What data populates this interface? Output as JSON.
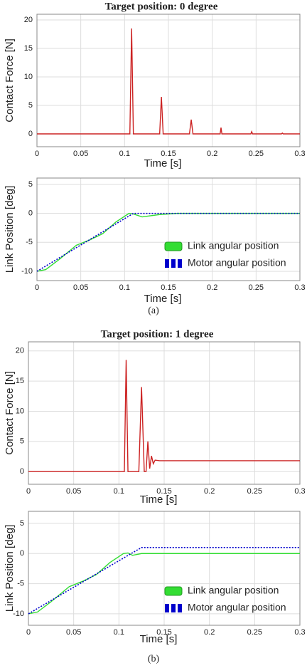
{
  "chart_data": [
    {
      "type": "line",
      "title": "Target position: 0 degree",
      "xlabel": "Time [s]",
      "ylabel": "Contact Force [N]",
      "x": [
        0,
        0.106,
        0.108,
        0.11,
        0.14,
        0.142,
        0.144,
        0.174,
        0.176,
        0.178,
        0.209,
        0.21,
        0.211,
        0.244,
        0.245,
        0.246,
        0.279,
        0.28,
        0.281,
        0.3
      ],
      "series": [
        {
          "name": null,
          "color": "#cc2222",
          "values": [
            0,
            0,
            18.5,
            0,
            0,
            6.5,
            0,
            0,
            2.5,
            0,
            0,
            1.1,
            0,
            0,
            0.4,
            0,
            0,
            0.15,
            0,
            0
          ]
        }
      ],
      "xlim": [
        0,
        0.3
      ],
      "xticks": [
        0,
        0.05,
        0.1,
        0.15,
        0.2,
        0.25,
        0.3
      ],
      "ylim": [
        -2.25,
        21
      ],
      "yticks": [
        0,
        5,
        10,
        15,
        20
      ],
      "grid": true
    },
    {
      "type": "line",
      "xlabel": "Time [s]",
      "ylabel": "Link Position  [deg]",
      "x": [
        0,
        0.01,
        0.025,
        0.045,
        0.06,
        0.075,
        0.09,
        0.105,
        0.11,
        0.12,
        0.14,
        0.16,
        0.3
      ],
      "series": [
        {
          "name": "Link angular position",
          "color": "#33dd33",
          "values": [
            -10,
            -9.7,
            -8,
            -5.5,
            -4.6,
            -3.5,
            -1.5,
            0,
            -0.1,
            -0.6,
            -0.2,
            0,
            0
          ]
        },
        {
          "name": "Motor angular position",
          "color": "#0000cc",
          "values": [
            -10,
            -9.09,
            -7.73,
            -5.91,
            -4.55,
            -3.18,
            -1.82,
            -0.45,
            0,
            0,
            0,
            0,
            0
          ]
        }
      ],
      "xlim": [
        0,
        0.3
      ],
      "xticks": [
        0,
        0.05,
        0.1,
        0.15,
        0.2,
        0.25,
        0.3
      ],
      "ylim": [
        -11.6,
        6.1
      ],
      "yticks": [
        -10,
        -5,
        0,
        5
      ],
      "grid": true,
      "legend": "lower right",
      "caption": "(a)"
    },
    {
      "type": "line",
      "title": "Target position: 1 degree",
      "xlabel": "Time [s]",
      "ylabel": "Contact Force [N]",
      "x": [
        0,
        0.106,
        0.108,
        0.11,
        0.122,
        0.125,
        0.128,
        0.13,
        0.132,
        0.134,
        0.136,
        0.138,
        0.14,
        0.145,
        0.3
      ],
      "series": [
        {
          "name": null,
          "color": "#cc2222",
          "values": [
            0,
            0,
            18.5,
            0,
            0,
            14,
            0,
            0,
            5,
            0.5,
            2.6,
            1.3,
            1.9,
            1.8,
            1.8
          ]
        }
      ],
      "xlim": [
        0,
        0.3
      ],
      "xticks": [
        0,
        0.05,
        0.1,
        0.15,
        0.2,
        0.25,
        0.3
      ],
      "ylim": [
        -2.1,
        21.5
      ],
      "yticks": [
        0,
        5,
        10,
        15,
        20
      ],
      "grid": true
    },
    {
      "type": "line",
      "xlabel": "Time [s]",
      "ylabel": "Link Position  [deg]",
      "x": [
        0,
        0.01,
        0.025,
        0.045,
        0.06,
        0.075,
        0.09,
        0.105,
        0.11,
        0.115,
        0.125,
        0.3
      ],
      "series": [
        {
          "name": "Link angular position",
          "color": "#33dd33",
          "values": [
            -10,
            -9.7,
            -8,
            -5.5,
            -4.6,
            -3.5,
            -1.5,
            0,
            0.1,
            -0.3,
            0,
            0
          ]
        },
        {
          "name": "Motor angular position",
          "color": "#0000cc",
          "values": [
            -10,
            -9.12,
            -7.8,
            -6.04,
            -4.72,
            -3.4,
            -2.08,
            -0.76,
            -0.32,
            0.12,
            1,
            1
          ]
        }
      ],
      "xlim": [
        0,
        0.3
      ],
      "xticks": [
        0,
        0.05,
        0.1,
        0.15,
        0.2,
        0.25,
        0.3
      ],
      "ylim": [
        -11.9,
        7
      ],
      "yticks": [
        -10,
        -5,
        0,
        5
      ],
      "grid": true,
      "legend": "lower right",
      "caption": "(b)"
    }
  ]
}
